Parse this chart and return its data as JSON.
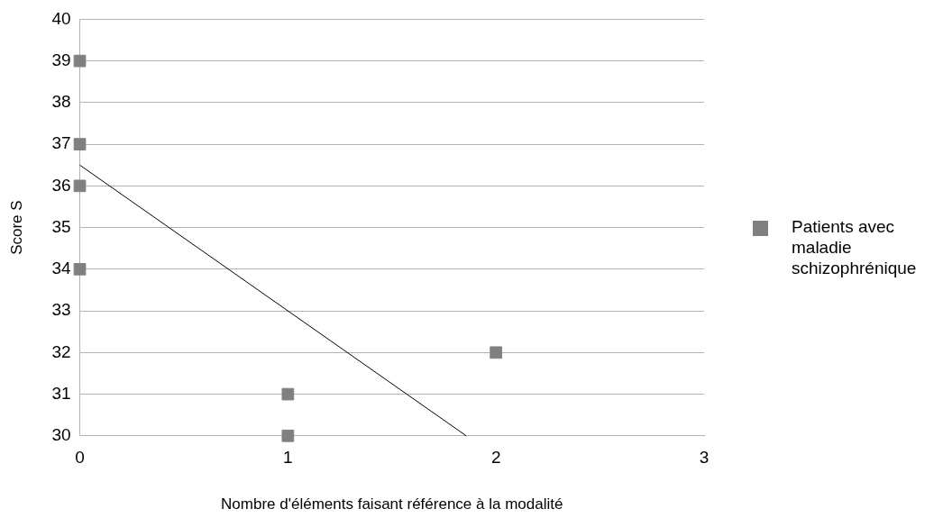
{
  "chart_data": {
    "type": "scatter",
    "xlabel": "Nombre d'éléments faisant référence à la modalité",
    "ylabel": "Score S",
    "series": [
      {
        "name": "Patients avec maladie schizophrénique",
        "color": "#808080",
        "x": [
          0,
          0,
          0,
          0,
          1,
          1,
          2
        ],
        "values": [
          39,
          37,
          36,
          34,
          31,
          30,
          32
        ]
      },
      {
        "type": "line",
        "color": "#000000",
        "x": [
          0,
          1.857
        ],
        "values": [
          36.5,
          30
        ],
        "marker": "none"
      }
    ],
    "xlim": [
      0,
      3
    ],
    "xticks": [
      0,
      1,
      2,
      3
    ],
    "ylim": [
      30,
      40
    ],
    "yticks": [
      30,
      31,
      32,
      33,
      34,
      35,
      36,
      37,
      38,
      39,
      40
    ],
    "grid": "y",
    "legend": "right",
    "marker": "square"
  }
}
